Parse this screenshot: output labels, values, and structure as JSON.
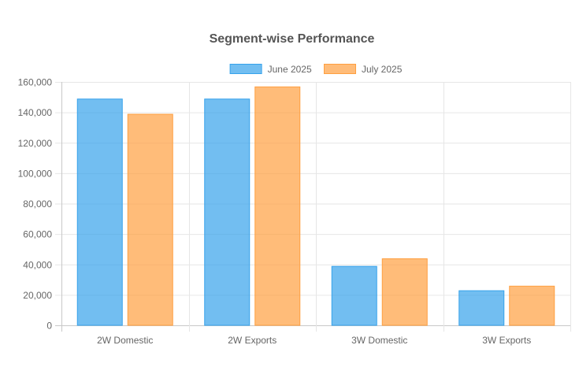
{
  "chart_data": {
    "type": "bar",
    "title": "Segment-wise Performance",
    "categories": [
      "2W Domestic",
      "2W Exports",
      "3W Domestic",
      "3W Exports"
    ],
    "series": [
      {
        "name": "June 2025",
        "values": [
          149000,
          149000,
          39000,
          23000
        ],
        "color": "#36A2EB"
      },
      {
        "name": "July 2025",
        "values": [
          139000,
          157000,
          44000,
          26000
        ],
        "color": "#FF9F40"
      }
    ],
    "ylim": [
      0,
      160000
    ],
    "yticks": [
      "0",
      "20,000",
      "40,000",
      "60,000",
      "80,000",
      "100,000",
      "120,000",
      "140,000",
      "160,000"
    ],
    "grid": true,
    "legend": "top"
  }
}
